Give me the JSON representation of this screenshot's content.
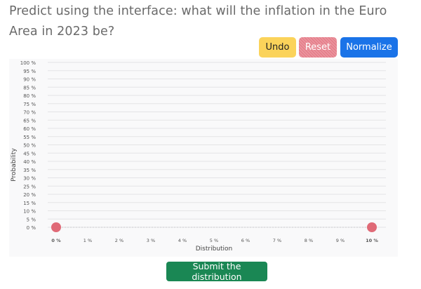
{
  "question": {
    "text": "Predict using the interface: what will the inflation in the Euro Area in 2023 be?"
  },
  "toolbar": {
    "undo_label": "Undo",
    "reset_label": "Reset",
    "normalize_label": "Normalize"
  },
  "chart_data": {
    "type": "line",
    "title": "",
    "xlabel": "Distribution",
    "ylabel": "Probability",
    "x_ticks": [
      "0 %",
      "1 %",
      "2 %",
      "3 %",
      "4 %",
      "5 %",
      "6 %",
      "7 %",
      "8 %",
      "9 %",
      "10 %"
    ],
    "y_ticks": [
      "0 %",
      "5 %",
      "10 %",
      "15 %",
      "20 %",
      "25 %",
      "30 %",
      "35 %",
      "40 %",
      "45 %",
      "50 %",
      "55 %",
      "60 %",
      "65 %",
      "70 %",
      "75 %",
      "80 %",
      "85 %",
      "90 %",
      "95 %",
      "100 %"
    ],
    "xlim": [
      0,
      10
    ],
    "ylim": [
      0,
      100
    ],
    "grid": true,
    "series": [
      {
        "x": [
          0,
          10
        ],
        "y": [
          0,
          0
        ],
        "color": "#e06a77"
      }
    ]
  },
  "submit": {
    "label": "Submit the distribution"
  }
}
